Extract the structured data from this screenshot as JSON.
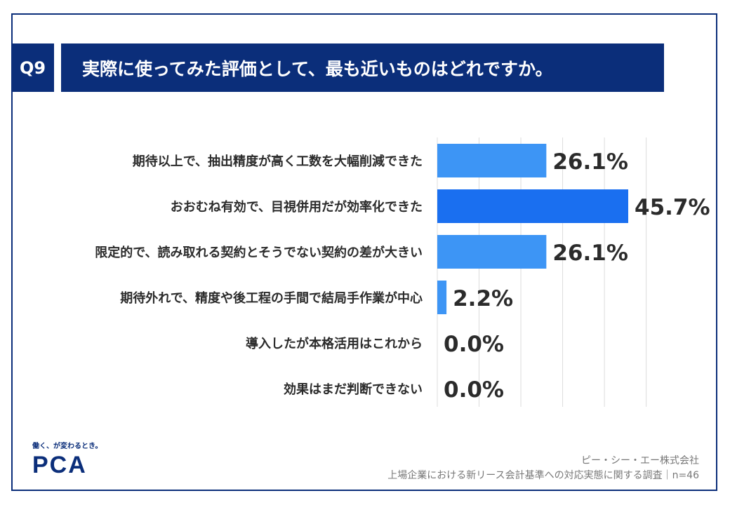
{
  "header": {
    "question_number": "Q9",
    "question_text": "実際に使ってみた評価として、最も近いものはどれですか。"
  },
  "chart_data": {
    "type": "bar",
    "orientation": "horizontal",
    "categories": [
      "期待以上で、抽出精度が高く工数を大幅削減できた",
      "おおむね有効で、目視併用だが効率化できた",
      "限定的で、読み取れる契約とそうでない契約の差が大きい",
      "期待外れで、精度や後工程の手間で結局手作業が中心",
      "導入したが本格活用はこれから",
      "効果はまだ判断できない"
    ],
    "values": [
      26.1,
      45.7,
      26.1,
      2.2,
      0.0,
      0.0
    ],
    "value_labels": [
      "26.1%",
      "45.7%",
      "26.1%",
      "2.2%",
      "0.0%",
      "0.0%"
    ],
    "xlim": [
      0,
      50
    ],
    "grid": true,
    "colors": {
      "bar": "#3d95f5",
      "highlight_bar": "#1a6ff0",
      "grid": "#dcdcdc"
    },
    "highlight_index": 1
  },
  "logo": {
    "tagline": "働く、が変わるとき。",
    "text": "PCA"
  },
  "footer": {
    "company": "ピー・シー・エー株式会社",
    "survey": "上場企業における新リース会計基準への対応実態に関する調査｜n=46"
  },
  "colors": {
    "brand_navy": "#0b2e7a"
  }
}
